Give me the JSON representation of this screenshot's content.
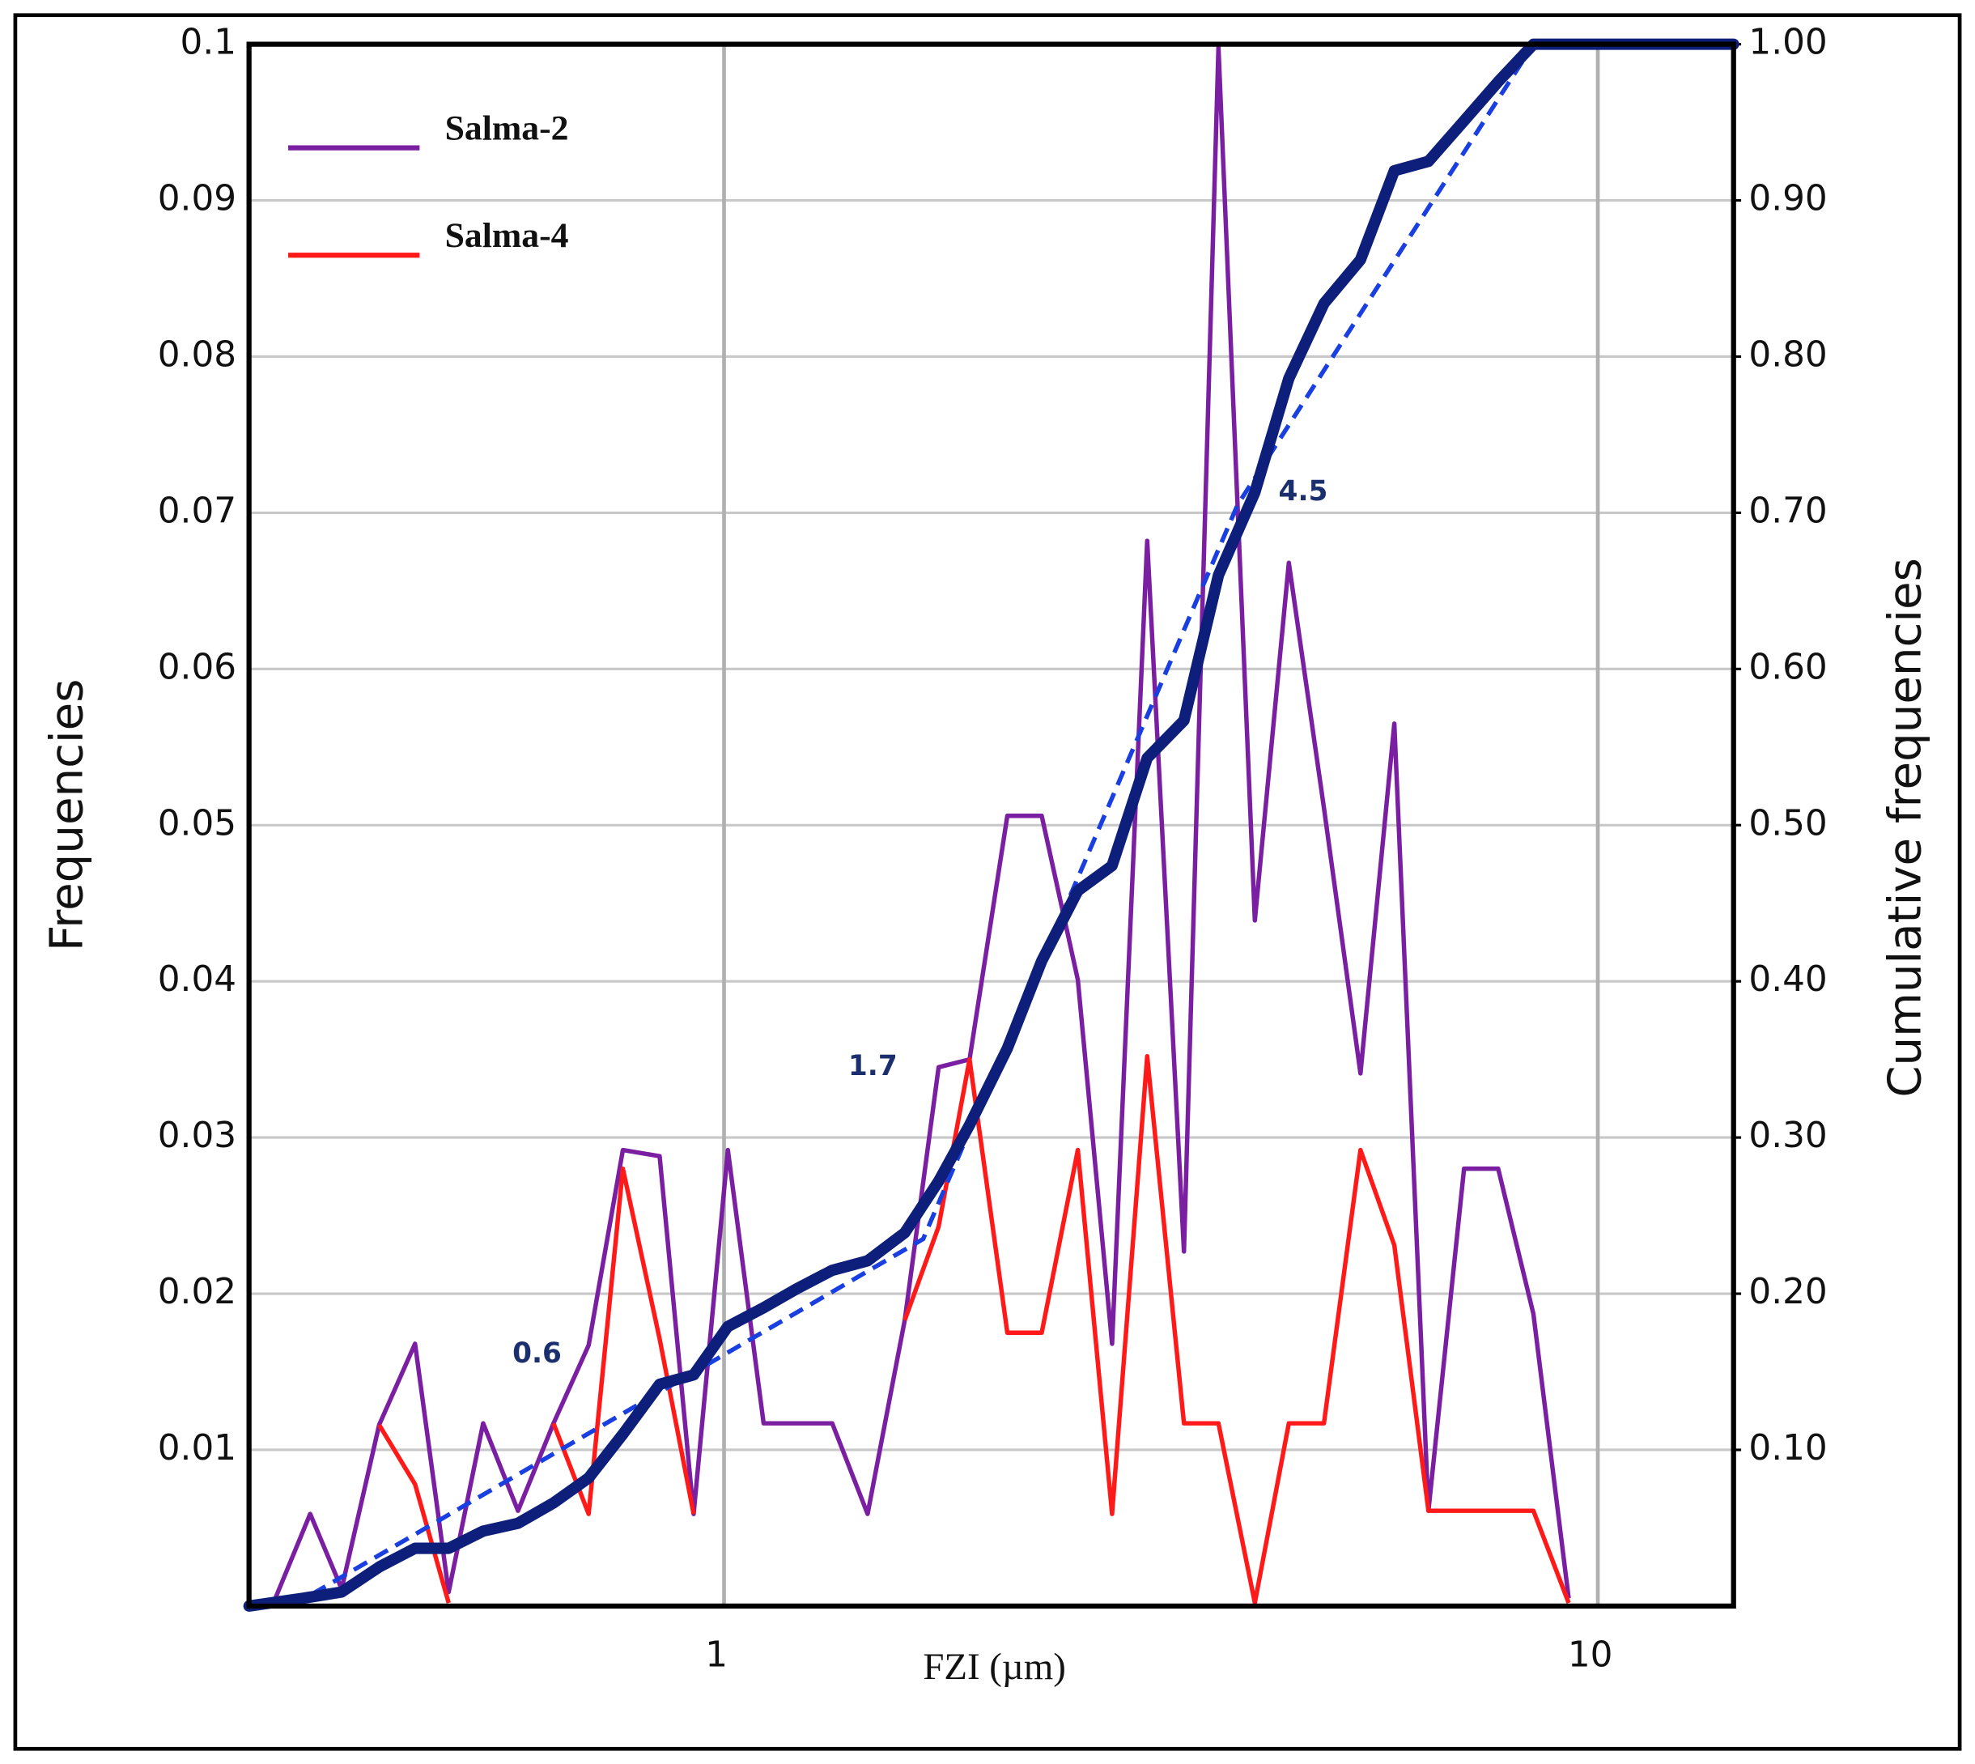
{
  "chart_data": {
    "type": "line",
    "xlabel": "FZI (µm)",
    "ylabel": "Frequencies",
    "y2label": "Cumulative frequencies",
    "log_x": true,
    "grid": true,
    "legend": "upper left",
    "xlim": [
      0.286,
      14.3
    ],
    "xticks": [
      1,
      10
    ],
    "ylim": [
      0,
      0.1
    ],
    "yticks": [
      0.01,
      0.02,
      0.03,
      0.04,
      0.05,
      0.06,
      0.07,
      0.08,
      0.09,
      0.1
    ],
    "y2lim": [
      0,
      1
    ],
    "y2ticks": [
      {
        "value": 0.1,
        "label": "0.10"
      },
      {
        "value": 0.2,
        "label": "0.20"
      },
      {
        "value": 0.3,
        "label": "0.30"
      },
      {
        "value": 0.4,
        "label": "0.40"
      },
      {
        "value": 0.5,
        "label": "0.50"
      },
      {
        "value": 0.6,
        "label": "0.60"
      },
      {
        "value": 0.7,
        "label": "0.70"
      },
      {
        "value": 0.8,
        "label": "0.80"
      },
      {
        "value": 0.9,
        "label": "0.90"
      },
      {
        "value": 1,
        "label": "1.00"
      }
    ],
    "x": [
      0.304,
      0.336,
      0.365,
      0.403,
      0.443,
      0.484,
      0.53,
      0.581,
      0.638,
      0.7,
      0.766,
      0.844,
      0.923,
      1.01,
      1.11,
      1.21,
      1.33,
      1.46,
      1.61,
      1.76,
      1.91,
      2.11,
      2.31,
      2.54,
      2.78,
      3.05,
      3.36,
      3.68,
      4.05,
      4.43,
      4.86,
      5.35,
      5.85,
      6.4,
      7.03,
      7.69,
      8.44,
      9.26
    ],
    "series": [
      {
        "name": "Salma-2",
        "color": "#7b1fa2",
        "values": [
          0,
          0.0059,
          0.0011,
          0.0116,
          0.0168,
          0.0009,
          0.0117,
          0.0061,
          0.0117,
          0.0167,
          0.0292,
          0.0288,
          0.0059,
          0.0292,
          0.0117,
          0.0117,
          0.0117,
          0.0059,
          0.0183,
          0.0345,
          0.035,
          0.0506,
          0.0506,
          0.0401,
          0.0168,
          0.0682,
          0.0227,
          0.0998,
          0.0439,
          0.0668,
          0.0511,
          0.0341,
          0.0565,
          0.0061,
          0.028,
          0.028,
          0.0187,
          0.0005
        ]
      },
      {
        "name": "Salma-4",
        "color": "#ff1a1a",
        "values": [
          null,
          null,
          null,
          0.0116,
          0.0078,
          0.0002,
          null,
          null,
          0.0117,
          0.0059,
          0.028,
          0.0171,
          0.0059,
          null,
          null,
          null,
          null,
          null,
          0.0183,
          0.0243,
          0.035,
          0.0175,
          0.0175,
          0.0292,
          0.0059,
          0.0352,
          0.0117,
          0.0117,
          0.0002,
          0.0117,
          0.0117,
          0.0292,
          0.0231,
          0.0061,
          0.0061,
          0.0061,
          0.0061,
          0.0002
        ]
      }
    ],
    "cumulative": {
      "color": "#0d1f7a",
      "axis": "y2",
      "x": [
        0.286,
        0.33,
        0.365,
        0.403,
        0.443,
        0.484,
        0.53,
        0.581,
        0.638,
        0.7,
        0.766,
        0.844,
        0.923,
        1.01,
        1.11,
        1.21,
        1.33,
        1.46,
        1.61,
        1.76,
        1.91,
        2.11,
        2.31,
        2.54,
        2.78,
        3.05,
        3.36,
        3.68,
        4.05,
        4.43,
        4.86,
        5.35,
        5.85,
        6.4,
        7.03,
        7.69,
        8.44,
        14.3
      ],
      "values": [
        0,
        0.005,
        0.009,
        0.025,
        0.037,
        0.037,
        0.048,
        0.053,
        0.066,
        0.082,
        0.11,
        0.142,
        0.148,
        0.179,
        0.191,
        0.203,
        0.215,
        0.221,
        0.239,
        0.272,
        0.308,
        0.357,
        0.413,
        0.458,
        0.474,
        0.543,
        0.567,
        0.66,
        0.713,
        0.786,
        0.834,
        0.862,
        0.919,
        0.925,
        0.951,
        0.976,
        1,
        1
      ]
    },
    "fit": {
      "color": "#1a3fe0",
      "axis": "y2",
      "x": [
        0.32,
        1.69,
        3.87,
        8.44
      ],
      "values": [
        0,
        0.235,
        0.705,
        1
      ]
    },
    "annotations": [
      {
        "text": "0.6",
        "x": 0.611,
        "y2": 0.161
      },
      {
        "text": "1.7",
        "x": 1.48,
        "y2": 0.345
      },
      {
        "text": "4.5",
        "x": 4.6,
        "y2": 0.713
      }
    ]
  }
}
